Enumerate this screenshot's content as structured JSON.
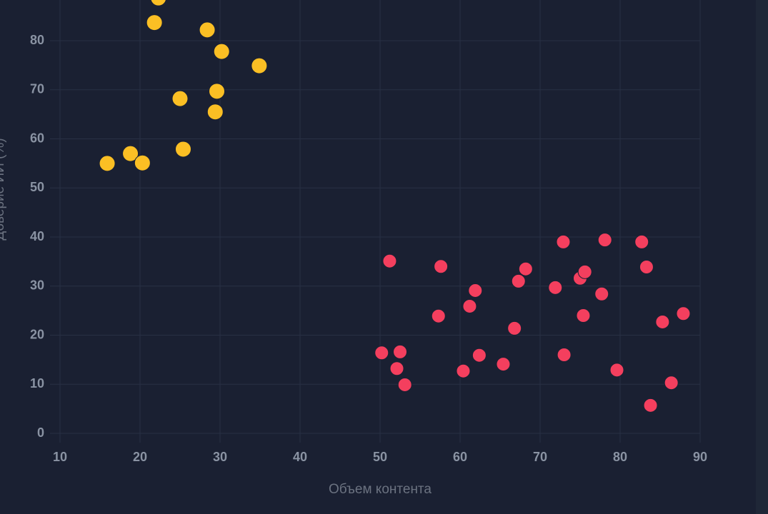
{
  "chart_data": {
    "type": "scatter",
    "x_label": "Объем контента",
    "y_label": "Доверие ИИ (%)",
    "xlim": [
      10,
      90
    ],
    "xticks": [
      10,
      20,
      30,
      40,
      50,
      60,
      70,
      80,
      90
    ],
    "ylim": [
      0,
      90
    ],
    "yticks": [
      0,
      10,
      20,
      30,
      40,
      50,
      60,
      70,
      80
    ],
    "grid": true,
    "series": [
      {
        "color": "#fbbf24",
        "x": [
          22.3,
          21.8,
          28.4,
          30.2,
          34.9,
          25.0,
          29.6,
          29.4,
          15.9,
          18.8,
          20.3,
          25.4
        ],
        "values": [
          88.7,
          83.7,
          82.2,
          77.8,
          74.9,
          68.2,
          69.7,
          65.5,
          55.0,
          57.0,
          55.1,
          57.9
        ]
      },
      {
        "color": "#f43f5e",
        "x": [
          51.2,
          57.6,
          50.2,
          52.5,
          52.1,
          53.1,
          57.3,
          61.2,
          61.9,
          60.4,
          62.4,
          65.4,
          66.8,
          67.3,
          68.2,
          71.9,
          72.9,
          73.0,
          75.0,
          75.6,
          75.4,
          77.7,
          78.1,
          79.6,
          82.7,
          83.3,
          83.8,
          85.3,
          86.4,
          87.9
        ],
        "values": [
          35.1,
          34.0,
          16.4,
          16.6,
          13.2,
          9.9,
          23.9,
          25.9,
          29.1,
          12.7,
          15.9,
          14.1,
          21.4,
          31.0,
          33.5,
          29.7,
          39.0,
          16.0,
          31.6,
          32.9,
          24.0,
          28.4,
          39.4,
          12.9,
          39.0,
          33.9,
          5.7,
          22.7,
          10.3,
          24.4
        ]
      }
    ]
  }
}
